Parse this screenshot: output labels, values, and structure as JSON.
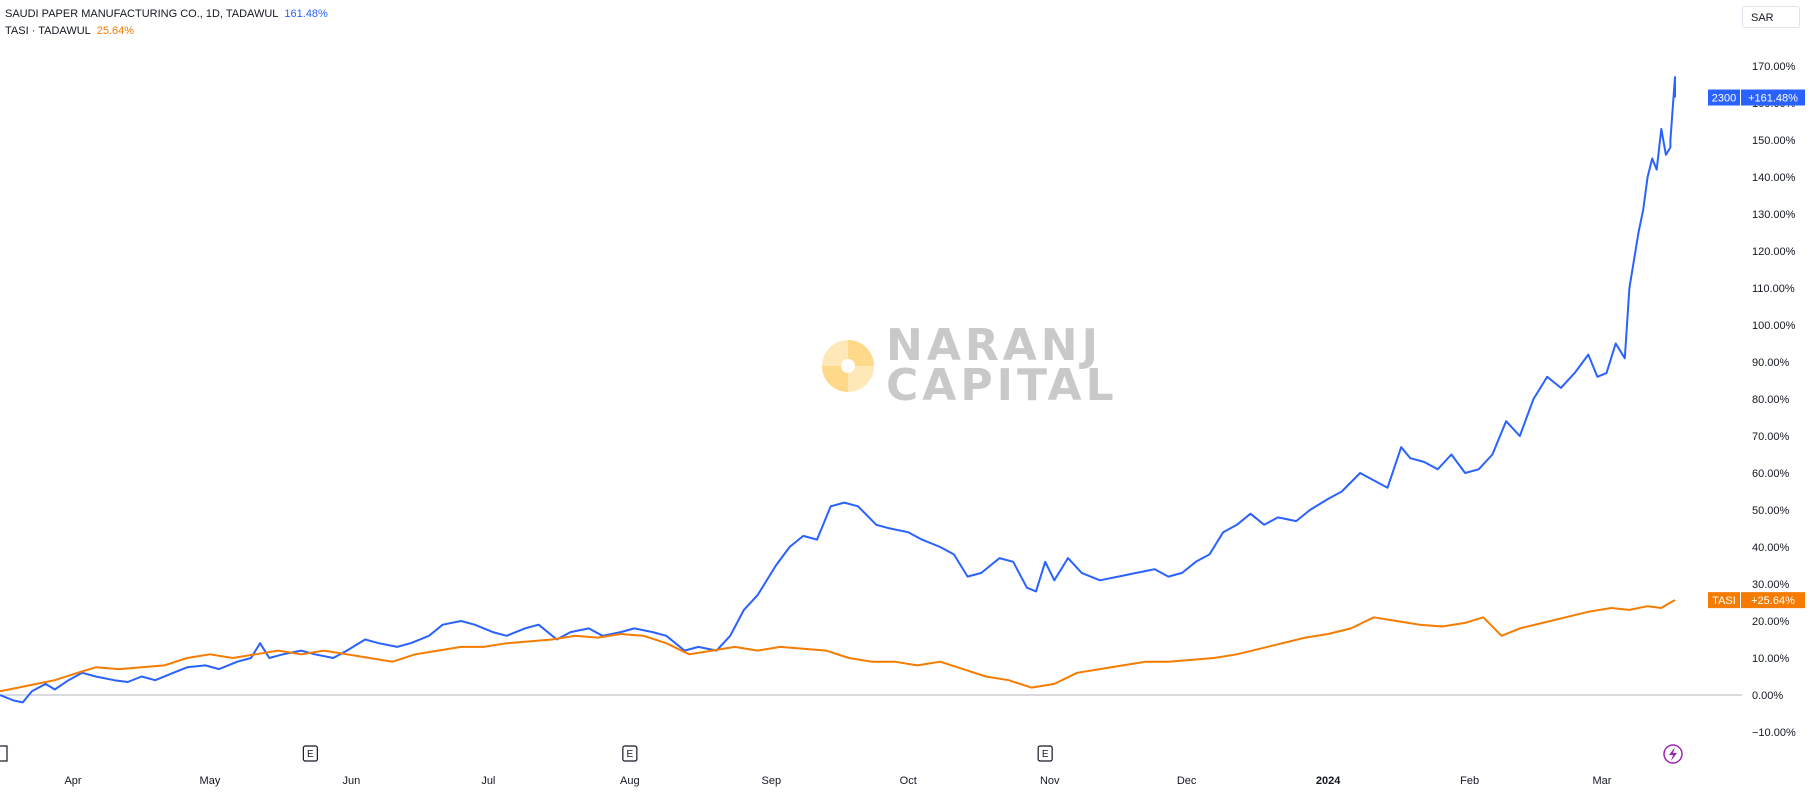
{
  "legend": {
    "series1_label": "SAUDI PAPER MANUFACTURING CO., 1D, TADAWUL",
    "series1_value": "161.48%",
    "series2_label": "TASI · TADAWUL",
    "series2_value": "25.64%"
  },
  "currency": "SAR",
  "watermark": {
    "line1": "NARANJ",
    "line2": "CAPITAL"
  },
  "colors": {
    "series1": "#2962ff",
    "series2": "#f57c00",
    "zero_line": "#b2b5be",
    "watermark_logo": "#ffe0a8"
  },
  "price_tags": [
    {
      "label": "2300",
      "value_label": "+161.48%",
      "value": 161.48,
      "series": "series1"
    },
    {
      "label": "TASI",
      "value_label": "+25.64%",
      "value": 25.64,
      "series": "series2"
    }
  ],
  "events": [
    {
      "label": "E",
      "date": "2023-05-23"
    },
    {
      "label": "E",
      "date": "2023-08-01"
    },
    {
      "label": "E",
      "date": "2023-10-31"
    }
  ],
  "alert_icon": "lightning-icon",
  "chart_data": {
    "type": "line",
    "yaxis_ticks": [
      "170.00%",
      "160.00%",
      "150.00%",
      "140.00%",
      "130.00%",
      "120.00%",
      "110.00%",
      "100.00%",
      "90.00%",
      "80.00%",
      "70.00%",
      "60.00%",
      "50.00%",
      "40.00%",
      "30.00%",
      "20.00%",
      "10.00%",
      "0.00%",
      "−10.00%"
    ],
    "ylim": [
      -10,
      170
    ],
    "xlim": [
      "2023-03-16",
      "2024-03-17"
    ],
    "x_ticks": [
      {
        "label": "Apr",
        "date": "2023-04-01"
      },
      {
        "label": "May",
        "date": "2023-05-01"
      },
      {
        "label": "Jun",
        "date": "2023-06-01"
      },
      {
        "label": "Jul",
        "date": "2023-07-01"
      },
      {
        "label": "Aug",
        "date": "2023-08-01"
      },
      {
        "label": "Sep",
        "date": "2023-09-01"
      },
      {
        "label": "Oct",
        "date": "2023-10-01"
      },
      {
        "label": "Nov",
        "date": "2023-11-01"
      },
      {
        "label": "Dec",
        "date": "2023-12-01"
      },
      {
        "label": "2024",
        "date": "2024-01-01"
      },
      {
        "label": "Feb",
        "date": "2024-02-01"
      },
      {
        "label": "Mar",
        "date": "2024-03-01"
      }
    ],
    "series": [
      {
        "name": "SAUDI PAPER MANUFACTURING CO., 1D, TADAWUL",
        "color": "#2962ff",
        "points": [
          [
            "2023-03-16",
            0
          ],
          [
            "2023-03-19",
            -1.5
          ],
          [
            "2023-03-21",
            -2
          ],
          [
            "2023-03-23",
            1
          ],
          [
            "2023-03-26",
            3
          ],
          [
            "2023-03-28",
            1.5
          ],
          [
            "2023-03-31",
            4
          ],
          [
            "2023-04-03",
            6
          ],
          [
            "2023-04-06",
            5
          ],
          [
            "2023-04-10",
            4
          ],
          [
            "2023-04-13",
            3.5
          ],
          [
            "2023-04-16",
            5
          ],
          [
            "2023-04-19",
            4
          ],
          [
            "2023-04-23",
            6
          ],
          [
            "2023-04-26",
            7.5
          ],
          [
            "2023-04-30",
            8
          ],
          [
            "2023-05-03",
            7
          ],
          [
            "2023-05-07",
            9
          ],
          [
            "2023-05-10",
            10
          ],
          [
            "2023-05-12",
            14
          ],
          [
            "2023-05-14",
            10
          ],
          [
            "2023-05-17",
            11
          ],
          [
            "2023-05-21",
            12
          ],
          [
            "2023-05-24",
            11
          ],
          [
            "2023-05-28",
            10
          ],
          [
            "2023-05-31",
            12
          ],
          [
            "2023-06-04",
            15
          ],
          [
            "2023-06-07",
            14
          ],
          [
            "2023-06-11",
            13
          ],
          [
            "2023-06-14",
            14
          ],
          [
            "2023-06-18",
            16
          ],
          [
            "2023-06-21",
            19
          ],
          [
            "2023-06-25",
            20
          ],
          [
            "2023-06-28",
            19
          ],
          [
            "2023-07-02",
            17
          ],
          [
            "2023-07-05",
            16
          ],
          [
            "2023-07-09",
            18
          ],
          [
            "2023-07-12",
            19
          ],
          [
            "2023-07-16",
            15
          ],
          [
            "2023-07-19",
            17
          ],
          [
            "2023-07-23",
            18
          ],
          [
            "2023-07-26",
            16
          ],
          [
            "2023-07-30",
            17
          ],
          [
            "2023-08-02",
            18
          ],
          [
            "2023-08-06",
            17
          ],
          [
            "2023-08-09",
            16
          ],
          [
            "2023-08-13",
            12
          ],
          [
            "2023-08-16",
            13
          ],
          [
            "2023-08-20",
            12
          ],
          [
            "2023-08-23",
            16
          ],
          [
            "2023-08-26",
            23
          ],
          [
            "2023-08-29",
            27
          ],
          [
            "2023-09-02",
            35
          ],
          [
            "2023-09-05",
            40
          ],
          [
            "2023-09-08",
            43
          ],
          [
            "2023-09-11",
            42
          ],
          [
            "2023-09-14",
            51
          ],
          [
            "2023-09-17",
            52
          ],
          [
            "2023-09-20",
            51
          ],
          [
            "2023-09-24",
            46
          ],
          [
            "2023-09-27",
            45
          ],
          [
            "2023-10-01",
            44
          ],
          [
            "2023-10-04",
            42
          ],
          [
            "2023-10-08",
            40
          ],
          [
            "2023-10-11",
            38
          ],
          [
            "2023-10-14",
            32
          ],
          [
            "2023-10-17",
            33
          ],
          [
            "2023-10-21",
            37
          ],
          [
            "2023-10-24",
            36
          ],
          [
            "2023-10-27",
            29
          ],
          [
            "2023-10-29",
            28
          ],
          [
            "2023-10-31",
            36
          ],
          [
            "2023-11-02",
            31
          ],
          [
            "2023-11-05",
            37
          ],
          [
            "2023-11-08",
            33
          ],
          [
            "2023-11-12",
            31
          ],
          [
            "2023-11-16",
            32
          ],
          [
            "2023-11-20",
            33
          ],
          [
            "2023-11-24",
            34
          ],
          [
            "2023-11-27",
            32
          ],
          [
            "2023-11-30",
            33
          ],
          [
            "2023-12-03",
            36
          ],
          [
            "2023-12-06",
            38
          ],
          [
            "2023-12-09",
            44
          ],
          [
            "2023-12-12",
            46
          ],
          [
            "2023-12-15",
            49
          ],
          [
            "2023-12-18",
            46
          ],
          [
            "2023-12-21",
            48
          ],
          [
            "2023-12-25",
            47
          ],
          [
            "2023-12-28",
            50
          ],
          [
            "2024-01-01",
            53
          ],
          [
            "2024-01-04",
            55
          ],
          [
            "2024-01-08",
            60
          ],
          [
            "2024-01-11",
            58
          ],
          [
            "2024-01-14",
            56
          ],
          [
            "2024-01-17",
            67
          ],
          [
            "2024-01-19",
            64
          ],
          [
            "2024-01-22",
            63
          ],
          [
            "2024-01-25",
            61
          ],
          [
            "2024-01-28",
            65
          ],
          [
            "2024-01-31",
            60
          ],
          [
            "2024-02-03",
            61
          ],
          [
            "2024-02-06",
            65
          ],
          [
            "2024-02-09",
            74
          ],
          [
            "2024-02-12",
            70
          ],
          [
            "2024-02-15",
            80
          ],
          [
            "2024-02-18",
            86
          ],
          [
            "2024-02-21",
            83
          ],
          [
            "2024-02-24",
            87
          ],
          [
            "2024-02-27",
            92
          ],
          [
            "2024-02-29",
            86
          ],
          [
            "2024-03-02",
            87
          ],
          [
            "2024-03-04",
            95
          ],
          [
            "2024-03-06",
            91
          ],
          [
            "2024-03-07",
            110
          ],
          [
            "2024-03-09",
            125
          ],
          [
            "2024-03-10",
            131
          ],
          [
            "2024-03-11",
            140
          ],
          [
            "2024-03-12",
            145
          ],
          [
            "2024-03-13",
            142
          ],
          [
            "2024-03-14",
            153
          ],
          [
            "2024-03-15",
            146
          ],
          [
            "2024-03-16",
            148
          ],
          [
            "2024-03-16",
            150
          ],
          [
            "2024-03-17",
            167
          ],
          [
            "2024-03-17",
            161.48
          ]
        ]
      },
      {
        "name": "TASI · TADAWUL",
        "color": "#f57c00",
        "points": [
          [
            "2023-03-16",
            1
          ],
          [
            "2023-03-20",
            2
          ],
          [
            "2023-03-24",
            3
          ],
          [
            "2023-03-28",
            4
          ],
          [
            "2023-04-02",
            6
          ],
          [
            "2023-04-06",
            7.5
          ],
          [
            "2023-04-11",
            7
          ],
          [
            "2023-04-16",
            7.5
          ],
          [
            "2023-04-21",
            8
          ],
          [
            "2023-04-26",
            10
          ],
          [
            "2023-05-01",
            11
          ],
          [
            "2023-05-06",
            10
          ],
          [
            "2023-05-11",
            11
          ],
          [
            "2023-05-16",
            12
          ],
          [
            "2023-05-21",
            11
          ],
          [
            "2023-05-26",
            12
          ],
          [
            "2023-05-31",
            11
          ],
          [
            "2023-06-05",
            10
          ],
          [
            "2023-06-10",
            9
          ],
          [
            "2023-06-15",
            11
          ],
          [
            "2023-06-20",
            12
          ],
          [
            "2023-06-25",
            13
          ],
          [
            "2023-06-30",
            13
          ],
          [
            "2023-07-05",
            14
          ],
          [
            "2023-07-10",
            14.5
          ],
          [
            "2023-07-15",
            15
          ],
          [
            "2023-07-20",
            16
          ],
          [
            "2023-07-25",
            15.5
          ],
          [
            "2023-07-30",
            16.5
          ],
          [
            "2023-08-04",
            16
          ],
          [
            "2023-08-09",
            14
          ],
          [
            "2023-08-14",
            11
          ],
          [
            "2023-08-19",
            12
          ],
          [
            "2023-08-24",
            13
          ],
          [
            "2023-08-29",
            12
          ],
          [
            "2023-09-03",
            13
          ],
          [
            "2023-09-08",
            12.5
          ],
          [
            "2023-09-13",
            12
          ],
          [
            "2023-09-18",
            10
          ],
          [
            "2023-09-23",
            9
          ],
          [
            "2023-09-28",
            9
          ],
          [
            "2023-10-03",
            8
          ],
          [
            "2023-10-08",
            9
          ],
          [
            "2023-10-13",
            7
          ],
          [
            "2023-10-18",
            5
          ],
          [
            "2023-10-23",
            4
          ],
          [
            "2023-10-28",
            2
          ],
          [
            "2023-11-02",
            3
          ],
          [
            "2023-11-07",
            6
          ],
          [
            "2023-11-12",
            7
          ],
          [
            "2023-11-17",
            8
          ],
          [
            "2023-11-22",
            9
          ],
          [
            "2023-11-27",
            9
          ],
          [
            "2023-12-02",
            9.5
          ],
          [
            "2023-12-07",
            10
          ],
          [
            "2023-12-12",
            11
          ],
          [
            "2023-12-17",
            12.5
          ],
          [
            "2023-12-22",
            14
          ],
          [
            "2023-12-27",
            15.5
          ],
          [
            "2024-01-01",
            16.5
          ],
          [
            "2024-01-06",
            18
          ],
          [
            "2024-01-11",
            21
          ],
          [
            "2024-01-16",
            20
          ],
          [
            "2024-01-21",
            19
          ],
          [
            "2024-01-26",
            18.5
          ],
          [
            "2024-01-31",
            19.5
          ],
          [
            "2024-02-04",
            21
          ],
          [
            "2024-02-08",
            16
          ],
          [
            "2024-02-12",
            18
          ],
          [
            "2024-02-17",
            19.5
          ],
          [
            "2024-02-22",
            21
          ],
          [
            "2024-02-27",
            22.5
          ],
          [
            "2024-03-03",
            23.5
          ],
          [
            "2024-03-07",
            23
          ],
          [
            "2024-03-11",
            24
          ],
          [
            "2024-03-14",
            23.5
          ],
          [
            "2024-03-16",
            25
          ],
          [
            "2024-03-17",
            25.64
          ]
        ]
      }
    ]
  }
}
